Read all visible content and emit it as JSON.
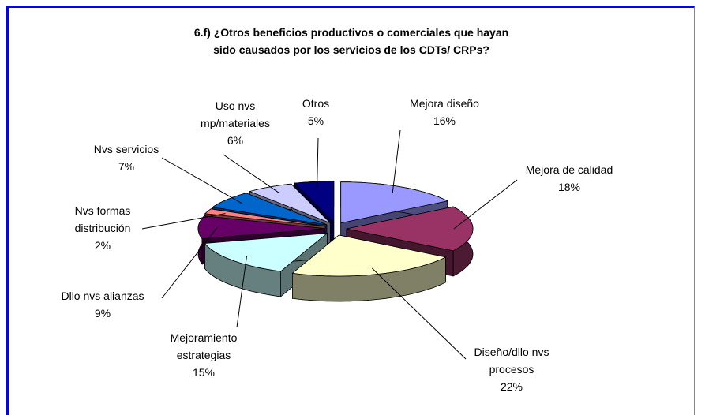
{
  "chart_data": {
    "type": "pie3d",
    "title": "6.f) ¿Otros beneficios productivos o comerciales que hayan sido causados por los servicios de los CDTs/ CRPs?",
    "categories": [
      "Mejora diseño",
      "Mejora de calidad",
      "Diseño/dllo nvs procesos",
      "Mejoramiento estrategias",
      "Dllo nvs alianzas",
      "Nvs formas distribución",
      "Nvs servicios",
      "Uso nvs mp/materiales",
      "Otros"
    ],
    "values": [
      16,
      18,
      22,
      15,
      9,
      2,
      7,
      6,
      5
    ],
    "value_labels": [
      "16%",
      "18%",
      "22%",
      "15%",
      "9%",
      "2%",
      "7%",
      "6%",
      "5%"
    ],
    "colors": [
      "#9999ff",
      "#993366",
      "#ffffcc",
      "#ccffff",
      "#660066",
      "#ff8080",
      "#0066cc",
      "#ccccff",
      "#000080"
    ]
  }
}
